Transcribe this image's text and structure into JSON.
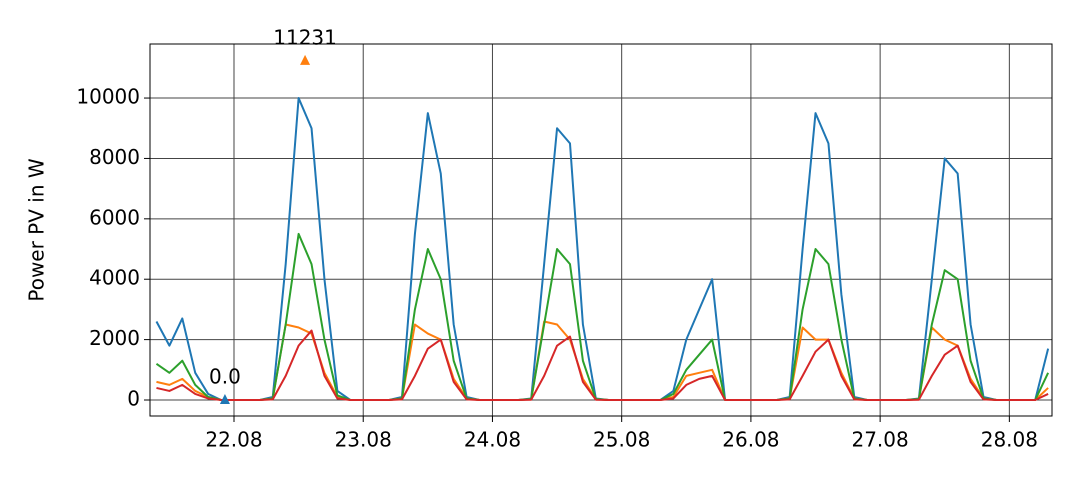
{
  "chart_data": {
    "type": "line",
    "y_label": "Power PV in W",
    "x": [
      21.4,
      21.5,
      21.6,
      21.7,
      21.8,
      21.9,
      22.0,
      22.1,
      22.2,
      22.3,
      22.4,
      22.5,
      22.6,
      22.7,
      22.8,
      22.9,
      23.0,
      23.1,
      23.2,
      23.3,
      23.4,
      23.5,
      23.6,
      23.7,
      23.8,
      23.9,
      24.0,
      24.1,
      24.2,
      24.3,
      24.4,
      24.5,
      24.6,
      24.7,
      24.8,
      24.9,
      25.0,
      25.1,
      25.2,
      25.3,
      25.4,
      25.5,
      25.6,
      25.7,
      25.8,
      25.9,
      26.0,
      26.1,
      26.2,
      26.3,
      26.4,
      26.5,
      26.6,
      26.7,
      26.8,
      26.9,
      27.0,
      27.1,
      27.2,
      27.3,
      27.4,
      27.5,
      27.6,
      27.7,
      27.8,
      27.9,
      28.0,
      28.1,
      28.2,
      28.3
    ],
    "series": [
      {
        "color": "#1f77b4",
        "values": [
          2600,
          1800,
          2700,
          900,
          200,
          0,
          0,
          0,
          0,
          100,
          4500,
          10000,
          9000,
          4000,
          300,
          0,
          0,
          0,
          0,
          100,
          5500,
          9500,
          7500,
          2500,
          100,
          0,
          0,
          0,
          0,
          50,
          4500,
          9000,
          8500,
          2500,
          50,
          0,
          0,
          0,
          0,
          0,
          300,
          2000,
          3000,
          4000,
          0,
          0,
          0,
          0,
          0,
          100,
          5000,
          9500,
          8500,
          3500,
          100,
          0,
          0,
          0,
          0,
          50,
          4000,
          8000,
          7500,
          2500,
          100,
          0,
          0,
          0,
          0,
          1700
        ]
      },
      {
        "color": "#ff7f0e",
        "values": [
          600,
          500,
          700,
          300,
          100,
          0,
          0,
          0,
          0,
          50,
          2500,
          2400,
          2200,
          900,
          100,
          0,
          0,
          0,
          0,
          50,
          2500,
          2200,
          2000,
          700,
          50,
          0,
          0,
          0,
          0,
          30,
          2600,
          2500,
          2000,
          700,
          30,
          0,
          0,
          0,
          0,
          0,
          100,
          800,
          900,
          1000,
          0,
          0,
          0,
          0,
          0,
          50,
          2400,
          2000,
          2000,
          900,
          50,
          0,
          0,
          0,
          0,
          30,
          2400,
          2000,
          1800,
          700,
          50,
          0,
          0,
          0,
          0,
          400
        ]
      },
      {
        "color": "#2ca02c",
        "values": [
          1200,
          900,
          1300,
          500,
          100,
          0,
          0,
          0,
          0,
          50,
          2500,
          5500,
          4500,
          2000,
          150,
          0,
          0,
          0,
          0,
          50,
          3000,
          5000,
          4000,
          1300,
          50,
          0,
          0,
          0,
          0,
          30,
          2500,
          5000,
          4500,
          1300,
          30,
          0,
          0,
          0,
          0,
          0,
          200,
          1000,
          1500,
          2000,
          0,
          0,
          0,
          0,
          0,
          50,
          3000,
          5000,
          4500,
          2000,
          50,
          0,
          0,
          0,
          0,
          30,
          2500,
          4300,
          4000,
          1300,
          50,
          0,
          0,
          0,
          0,
          900
        ]
      },
      {
        "color": "#d62728",
        "values": [
          400,
          300,
          500,
          200,
          50,
          0,
          0,
          0,
          0,
          20,
          800,
          1800,
          2300,
          800,
          50,
          0,
          0,
          0,
          0,
          20,
          800,
          1700,
          2000,
          600,
          20,
          0,
          0,
          0,
          0,
          10,
          800,
          1800,
          2100,
          600,
          10,
          0,
          0,
          0,
          0,
          0,
          50,
          500,
          700,
          800,
          0,
          0,
          0,
          0,
          0,
          20,
          800,
          1600,
          2000,
          800,
          20,
          0,
          0,
          0,
          0,
          10,
          800,
          1500,
          1800,
          600,
          20,
          0,
          0,
          0,
          0,
          200
        ]
      }
    ],
    "annotations": [
      {
        "x": 22.55,
        "value": 11231,
        "label": "11231",
        "color": "#ff7f0e"
      },
      {
        "x": 21.93,
        "value": 0,
        "label": "0.0",
        "color": "#1f77b4"
      }
    ],
    "xlim": [
      21.35,
      28.33
    ],
    "xticks": [
      {
        "value": 22,
        "label": "22.08"
      },
      {
        "value": 23,
        "label": "23.08"
      },
      {
        "value": 24,
        "label": "24.08"
      },
      {
        "value": 25,
        "label": "25.08"
      },
      {
        "value": 26,
        "label": "26.08"
      },
      {
        "value": 27,
        "label": "27.08"
      },
      {
        "value": 28,
        "label": "28.08"
      }
    ],
    "ylim": [
      -530,
      11790
    ],
    "yticks": [
      0,
      2000,
      4000,
      6000,
      8000,
      10000
    ],
    "grid": true
  }
}
